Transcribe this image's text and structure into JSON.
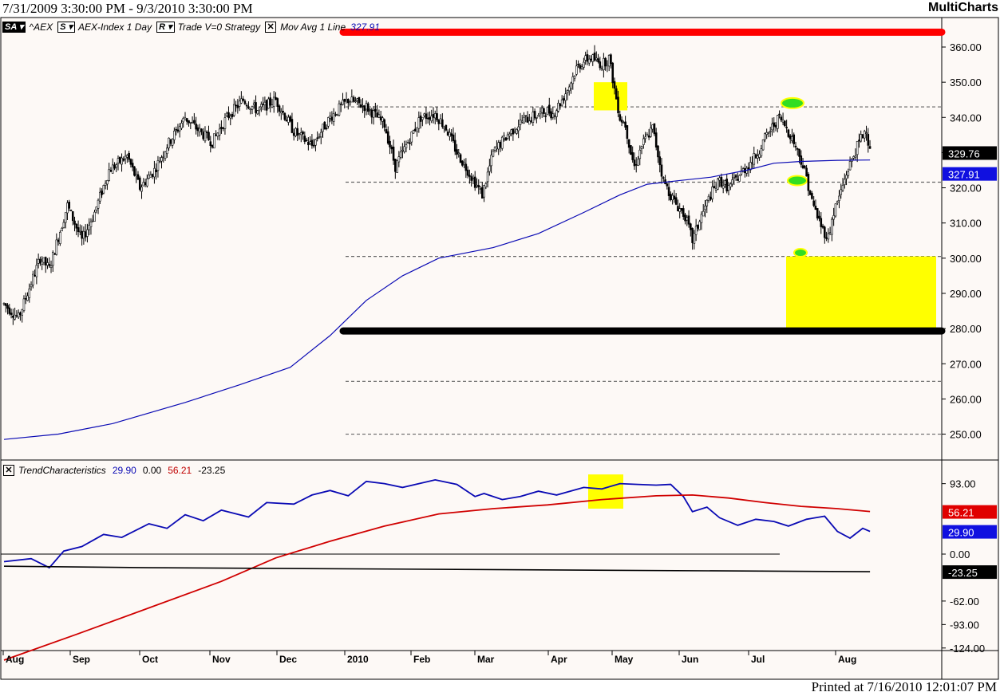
{
  "header": {
    "range": "7/31/2009 3:30:00 PM - 9/3/2010 3:30:00 PM",
    "app": "MultiCharts"
  },
  "footer": {
    "printed": "Printed at 7/16/2010 12:01:07 PM"
  },
  "legend": {
    "sa": "SA",
    "symbol": "^AEX",
    "s": "S",
    "desc": "AEX-Index  1 Day",
    "r": "R",
    "rest": "Trade  V=0  Strategy",
    "ma_label": "Mov Avg 1 Line",
    "ma_value": "327.91"
  },
  "legend2": {
    "name": "TrendCharacteristics",
    "v1": "29.90",
    "v2": "0.00",
    "v3": "56.21",
    "v4": "-23.25"
  },
  "colors": {
    "background": "#fdf9f6",
    "ma_line": "#0a0ab4",
    "trend_blue": "#0a0ab4",
    "trend_red": "#d00000",
    "highlight": "#ffff00",
    "target": "#33dd22",
    "resistance": "#ff0000",
    "support": "#000000"
  },
  "chart_data": [
    {
      "type": "candlestick",
      "x_ticks": [
        "Aug",
        "Sep",
        "Oct",
        "Nov",
        "Dec",
        "2010",
        "Feb",
        "Mar",
        "Apr",
        "May",
        "Jun",
        "Jul",
        "Aug"
      ],
      "y_ticks": [
        "360.00",
        "350.00",
        "340.00",
        "330.00",
        "320.00",
        "310.00",
        "300.00",
        "290.00",
        "280.00",
        "270.00",
        "260.00",
        "250.00"
      ],
      "ylim": [
        245.5,
        364.5
      ],
      "last_price": "329.76",
      "ma_value": "327.91",
      "price_path": [
        [
          0,
          287
        ],
        [
          8,
          283
        ],
        [
          15,
          293
        ],
        [
          20,
          300
        ],
        [
          25,
          297
        ],
        [
          35,
          315
        ],
        [
          43,
          305
        ],
        [
          50,
          313
        ],
        [
          58,
          325
        ],
        [
          68,
          329
        ],
        [
          75,
          320
        ],
        [
          83,
          325
        ],
        [
          90,
          332
        ],
        [
          100,
          340
        ],
        [
          108,
          336
        ],
        [
          115,
          333
        ],
        [
          123,
          340
        ],
        [
          132,
          345
        ],
        [
          140,
          342
        ],
        [
          150,
          345
        ],
        [
          160,
          336
        ],
        [
          170,
          332
        ],
        [
          180,
          340
        ],
        [
          190,
          345
        ],
        [
          200,
          343
        ],
        [
          210,
          338
        ],
        [
          216,
          326
        ],
        [
          222,
          332
        ],
        [
          230,
          340
        ],
        [
          238,
          341
        ],
        [
          244,
          337
        ],
        [
          250,
          330
        ],
        [
          256,
          325
        ],
        [
          264,
          318
        ],
        [
          270,
          330
        ],
        [
          278,
          335
        ],
        [
          286,
          339
        ],
        [
          296,
          341
        ],
        [
          300,
          342
        ],
        [
          303,
          341
        ],
        [
          308,
          345
        ],
        [
          312,
          349
        ],
        [
          316,
          354
        ],
        [
          320,
          356
        ],
        [
          324,
          357
        ],
        [
          330,
          355
        ],
        [
          334,
          357
        ],
        [
          337,
          348
        ],
        [
          340,
          340
        ],
        [
          343,
          338
        ],
        [
          346,
          330
        ],
        [
          348,
          326
        ],
        [
          352,
          332
        ],
        [
          358,
          337
        ],
        [
          364,
          322
        ],
        [
          370,
          316
        ],
        [
          376,
          312
        ],
        [
          380,
          305
        ],
        [
          385,
          312
        ],
        [
          390,
          318
        ],
        [
          395,
          322
        ],
        [
          400,
          320
        ],
        [
          405,
          323
        ],
        [
          410,
          326
        ],
        [
          415,
          329
        ],
        [
          420,
          334
        ],
        [
          425,
          338
        ],
        [
          428,
          340
        ],
        [
          432,
          337
        ],
        [
          436,
          333
        ],
        [
          440,
          328
        ],
        [
          443,
          323
        ],
        [
          446,
          316
        ],
        [
          449,
          312
        ],
        [
          452,
          308
        ],
        [
          455,
          306
        ],
        [
          458,
          313
        ],
        [
          462,
          319
        ],
        [
          465,
          324
        ],
        [
          468,
          328
        ],
        [
          472,
          333
        ],
        [
          476,
          337
        ],
        [
          478,
          330
        ]
      ],
      "ma_path": [
        [
          0,
          248.5
        ],
        [
          30,
          250
        ],
        [
          60,
          253
        ],
        [
          100,
          259
        ],
        [
          130,
          264
        ],
        [
          158,
          269
        ],
        [
          180,
          278
        ],
        [
          200,
          288
        ],
        [
          220,
          295
        ],
        [
          240,
          300
        ],
        [
          270,
          303
        ],
        [
          295,
          307
        ],
        [
          320,
          313
        ],
        [
          340,
          318
        ],
        [
          355,
          321
        ],
        [
          372,
          322
        ],
        [
          390,
          323
        ],
        [
          410,
          325
        ],
        [
          425,
          327
        ],
        [
          440,
          327.5
        ],
        [
          460,
          327.8
        ],
        [
          478,
          327.9
        ]
      ],
      "resistance_level": 364,
      "support_level": 280,
      "dashed_levels": [
        343,
        321.6,
        300.5,
        265,
        250
      ],
      "target_zone": {
        "from": 280,
        "to": 300.5
      },
      "targets": [
        344.5,
        322.5,
        302
      ]
    },
    {
      "type": "line",
      "y_ticks": [
        "93.00",
        "0.00",
        "-62.00",
        "-93.00",
        "-124.00"
      ],
      "ylim": [
        -140,
        122
      ],
      "current_values": [
        "56.21",
        "29.90",
        "-23.25"
      ],
      "series": [
        {
          "name": "TrendCharacteristics",
          "values": "blue",
          "points": [
            [
              0,
              -10
            ],
            [
              15,
              -6
            ],
            [
              25,
              -18
            ],
            [
              33,
              4
            ],
            [
              43,
              10
            ],
            [
              55,
              26
            ],
            [
              65,
              22
            ],
            [
              80,
              40
            ],
            [
              90,
              34
            ],
            [
              100,
              52
            ],
            [
              110,
              44
            ],
            [
              120,
              58
            ],
            [
              135,
              49
            ],
            [
              145,
              68
            ],
            [
              160,
              66
            ],
            [
              170,
              78
            ],
            [
              180,
              84
            ],
            [
              190,
              77
            ],
            [
              200,
              96
            ],
            [
              210,
              93
            ],
            [
              220,
              88
            ],
            [
              238,
              98
            ],
            [
              250,
              92
            ],
            [
              260,
              76
            ],
            [
              265,
              80
            ],
            [
              275,
              72
            ],
            [
              285,
              76
            ],
            [
              295,
              83
            ],
            [
              305,
              78
            ],
            [
              320,
              88
            ],
            [
              330,
              86
            ],
            [
              340,
              93
            ],
            [
              350,
              92
            ],
            [
              360,
              91
            ],
            [
              368,
              92
            ],
            [
              375,
              76
            ],
            [
              380,
              56
            ],
            [
              388,
              62
            ],
            [
              395,
              48
            ],
            [
              405,
              38
            ],
            [
              415,
              46
            ],
            [
              425,
              43
            ],
            [
              433,
              37
            ],
            [
              443,
              46
            ],
            [
              453,
              50
            ],
            [
              460,
              30
            ],
            [
              467,
              21
            ],
            [
              474,
              34
            ],
            [
              478,
              29.9
            ]
          ]
        },
        {
          "name": "",
          "values": "red",
          "points": [
            [
              0,
              -140
            ],
            [
              40,
              -106
            ],
            [
              80,
              -71
            ],
            [
              120,
              -36
            ],
            [
              150,
              -5
            ],
            [
              180,
              17
            ],
            [
              210,
              37
            ],
            [
              240,
              53
            ],
            [
              270,
              60
            ],
            [
              300,
              65
            ],
            [
              330,
              72
            ],
            [
              360,
              77
            ],
            [
              380,
              78
            ],
            [
              400,
              74
            ],
            [
              420,
              68
            ],
            [
              440,
              63
            ],
            [
              460,
              60
            ],
            [
              478,
              56.21
            ]
          ]
        },
        {
          "name": "",
          "values": "black",
          "points": [
            [
              0,
              -16
            ],
            [
              80,
              -18
            ],
            [
              478,
              -23.25
            ]
          ]
        }
      ],
      "zero_line": 0,
      "highlight": {
        "from_bar": 368,
        "to_bar": 385,
        "top": 102,
        "bottom": 60
      }
    }
  ]
}
